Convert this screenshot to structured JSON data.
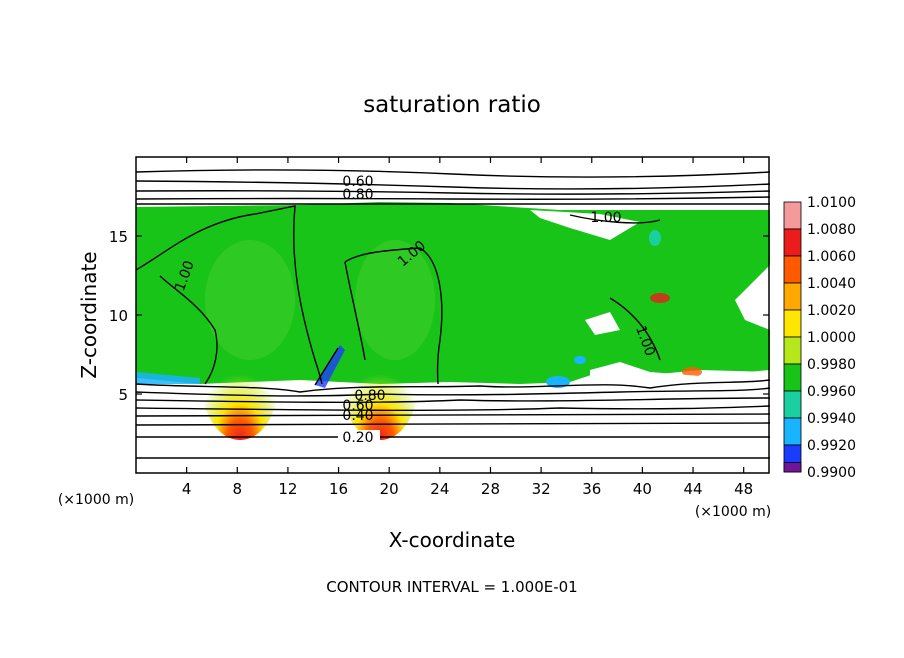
{
  "chart_data": {
    "type": "heatmap",
    "title": "saturation ratio",
    "xlabel": "X-coordinate",
    "ylabel": "Z-coordinate",
    "x_unit": "(×1000 m)",
    "y_unit": "(×1000 m)",
    "footer": "CONTOUR INTERVAL = 1.000E-01",
    "xlim": [
      0,
      50
    ],
    "ylim": [
      0,
      20
    ],
    "x_ticks": [
      4,
      8,
      12,
      16,
      20,
      24,
      28,
      32,
      36,
      40,
      44,
      48
    ],
    "y_ticks": [
      5,
      10,
      15
    ],
    "colorbar": {
      "range": [
        0.99,
        1.01
      ],
      "labels": [
        "1.0100",
        "1.0080",
        "1.0060",
        "1.0040",
        "1.0020",
        "1.0000",
        "0.9980",
        "0.9960",
        "0.9940",
        "0.9920",
        "0.9900"
      ],
      "colors": [
        "#f59a9a",
        "#ec1c1c",
        "#ff5a00",
        "#ffa800",
        "#ffe600",
        "#b4e81a",
        "#19c419",
        "#1ad0a0",
        "#19b4ff",
        "#1a3cff",
        "#1414b4",
        "#70149a"
      ]
    },
    "contour_labels": [
      {
        "text": "0.60",
        "x": 17.5,
        "z": 18.4
      },
      {
        "text": "0.80",
        "x": 17.5,
        "z": 17.6
      },
      {
        "text": "1.00",
        "x": 36.0,
        "z": 16.0
      },
      {
        "text": "1.00",
        "x": 3.6,
        "z": 12.5
      },
      {
        "text": "1.00",
        "x": 21.5,
        "z": 13.6
      },
      {
        "text": "1.00",
        "x": 38.5,
        "z": 8.5
      },
      {
        "text": "0.80",
        "x": 19.5,
        "z": 4.9
      },
      {
        "text": "0.60",
        "x": 18.0,
        "z": 4.4
      },
      {
        "text": "0.40",
        "x": 17.7,
        "z": 3.6
      },
      {
        "text": "0.20",
        "x": 17.7,
        "z": 2.3
      }
    ]
  }
}
